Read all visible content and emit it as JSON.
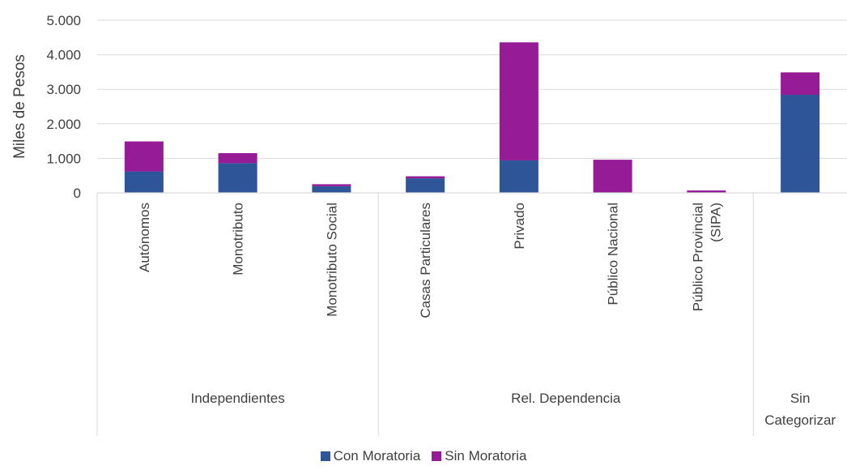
{
  "chart_data": {
    "type": "bar",
    "stacked": true,
    "ylabel": "Miles de Pesos",
    "ylim": [
      0,
      5000
    ],
    "yticks": [
      0,
      1000,
      2000,
      3000,
      4000,
      5000
    ],
    "ytick_labels": [
      "0",
      "1.000",
      "2.000",
      "3.000",
      "4.000",
      "5.000"
    ],
    "grid": true,
    "legend_position": "bottom",
    "categories": [
      [
        "Autónomos"
      ],
      [
        "Monotributo"
      ],
      [
        "Monotributo Social"
      ],
      [
        "Casas Particulares"
      ],
      [
        "Privado"
      ],
      [
        "Público Nacional"
      ],
      [
        "Público Provincial",
        "(SIPA)"
      ],
      [
        ""
      ]
    ],
    "groups": [
      {
        "lines": [
          "Independientes"
        ],
        "start": 0,
        "count": 3
      },
      {
        "lines": [
          "Rel. Dependencia"
        ],
        "start": 3,
        "count": 4
      },
      {
        "lines": [
          "Sin",
          "Categorizar"
        ],
        "start": 7,
        "count": 1
      }
    ],
    "series": [
      {
        "name": "Con Moratoria",
        "color": "#2E5597",
        "values": [
          620,
          860,
          190,
          420,
          940,
          10,
          10,
          2840
        ]
      },
      {
        "name": "Sin Moratoria",
        "color": "#951B97",
        "values": [
          870,
          290,
          60,
          60,
          3420,
          950,
          60,
          650
        ]
      }
    ]
  }
}
